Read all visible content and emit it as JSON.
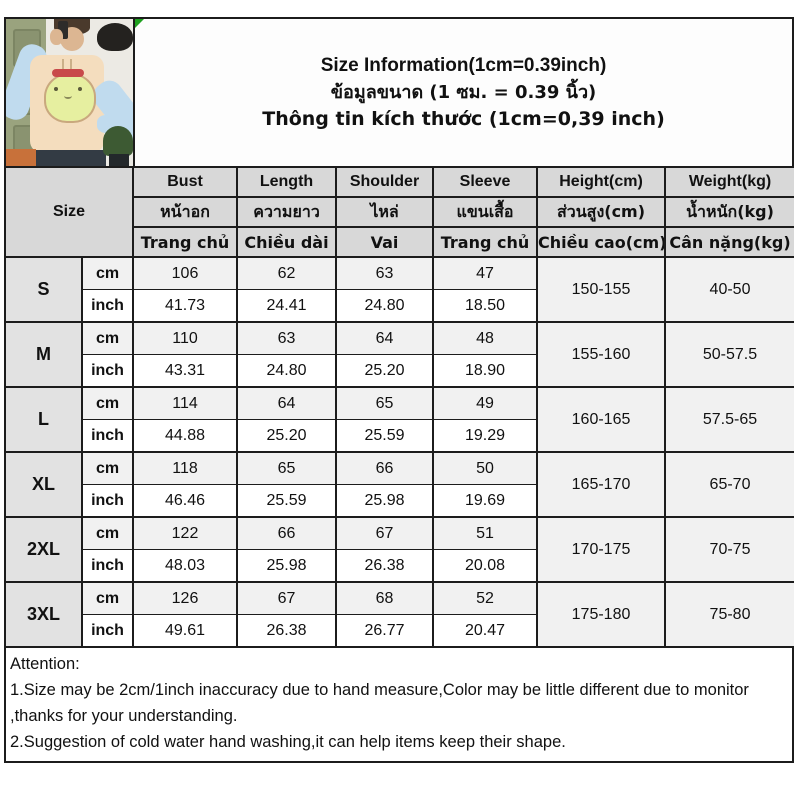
{
  "title": {
    "en": "Size Information(1cm=0.39inch)",
    "th": "ข้อมูลขนาด (1 ซม. = 0.39 นิ้ว)",
    "vi": "Thông tin kích thước (1cm=0,39 inch)"
  },
  "table": {
    "size_header": "Size",
    "unit_cm": "cm",
    "unit_inch": "inch",
    "columns": [
      {
        "en": "Bust",
        "th": "หน้าอก",
        "vi": "Trang chủ"
      },
      {
        "en": "Length",
        "th": "ความยาว",
        "vi": "Chiều dài"
      },
      {
        "en": "Shoulder",
        "th": "ไหล่",
        "vi": "Vai"
      },
      {
        "en": "Sleeve",
        "th": "แขนเสื้อ",
        "vi": "Trang chủ"
      },
      {
        "en": "Height(cm)",
        "th": "ส่วนสูง(cm)",
        "vi": "Chiều cao(cm)"
      },
      {
        "en": "Weight(kg)",
        "th": "น้ำหนัก(kg)",
        "vi": "Cân nặng(kg)"
      }
    ],
    "rows": [
      {
        "size": "S",
        "cm": [
          "106",
          "62",
          "63",
          "47"
        ],
        "inch": [
          "41.73",
          "24.41",
          "24.80",
          "18.50"
        ],
        "height": "150-155",
        "weight": "40-50"
      },
      {
        "size": "M",
        "cm": [
          "110",
          "63",
          "64",
          "48"
        ],
        "inch": [
          "43.31",
          "24.80",
          "25.20",
          "18.90"
        ],
        "height": "155-160",
        "weight": "50-57.5"
      },
      {
        "size": "L",
        "cm": [
          "114",
          "64",
          "65",
          "49"
        ],
        "inch": [
          "44.88",
          "25.20",
          "25.59",
          "19.29"
        ],
        "height": "160-165",
        "weight": "57.5-65"
      },
      {
        "size": "XL",
        "cm": [
          "118",
          "65",
          "66",
          "50"
        ],
        "inch": [
          "46.46",
          "25.59",
          "25.98",
          "19.69"
        ],
        "height": "165-170",
        "weight": "65-70"
      },
      {
        "size": "2XL",
        "cm": [
          "122",
          "66",
          "67",
          "51"
        ],
        "inch": [
          "48.03",
          "25.98",
          "26.38",
          "20.08"
        ],
        "height": "170-175",
        "weight": "70-75"
      },
      {
        "size": "3XL",
        "cm": [
          "126",
          "67",
          "68",
          "52"
        ],
        "inch": [
          "49.61",
          "26.38",
          "26.77",
          "20.47"
        ],
        "height": "175-180",
        "weight": "75-80"
      }
    ]
  },
  "attention": {
    "heading": "Attention:",
    "note1": "1.Size may be 2cm/1inch inaccuracy due to hand measure,Color may be little different due to monitor ,thanks for your understanding.",
    "note2": "2.Suggestion of cold water hand washing,it can help items keep their shape."
  },
  "photo": {
    "description": "model wearing cream hoodie with blue sleeves and frog graphic"
  },
  "colors": {
    "border": "#1c1c1c",
    "header_bg": "#d8d8d8",
    "size_label_bg": "#e2e2e2",
    "cm_row_bg": "#f1f1f1",
    "corner_marker_green": "#1fa11f",
    "hoodie_cream": "#f4ddbe",
    "sleeve_blue": "#c0dbee",
    "frog_green": "#e6efa0"
  }
}
